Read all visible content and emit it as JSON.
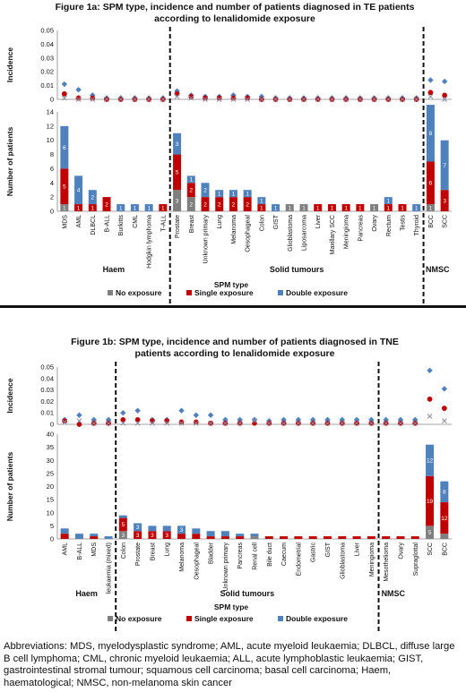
{
  "colors": {
    "none": "#7f7f7f",
    "single": "#c00000",
    "double": "#4f81bd",
    "diamond": "#4f81bd",
    "circle": "#c00000",
    "cross": "#8a8aa8"
  },
  "legend": [
    "No exposure",
    "Single exposure",
    "Double exposure"
  ],
  "chart_data": [
    {
      "type": "bar",
      "title": "Figure 1a: SPM type, incidence and number of patients diagnosed in TE patients according to lenalidomide exposure",
      "title_lines": [
        "Figure 1a: SPM type, incidence and number of patients diagnosed in TE patients",
        "according to lenalidomide exposure"
      ],
      "xlabel": "SPM type",
      "ylabel_top": "Incidence",
      "ylabel_bottom": "Number of patients",
      "top_ylim": [
        0,
        0.05
      ],
      "top_ticks": [
        "0",
        "0.01",
        "0.02",
        "0.03",
        "0.04",
        "0.05"
      ],
      "bottom_ylim": [
        0,
        14
      ],
      "bottom_ticks": [
        "0",
        "2",
        "4",
        "6",
        "8",
        "10",
        "12",
        "14"
      ],
      "groups": [
        {
          "name": "Haem",
          "start": 0,
          "end": 7
        },
        {
          "name": "Solid tumours",
          "start": 8,
          "end": 25
        },
        {
          "name": "NMSC",
          "start": 26,
          "end": 27
        }
      ],
      "dividers": [
        7.5,
        25.5
      ],
      "categories": [
        "MDS",
        "AML",
        "DLBCL",
        "B-ALL",
        "Burkitts",
        "CML",
        "Hodgkin lymphoma",
        "T-ALL",
        "Prostate",
        "Breast",
        "Unknown primary",
        "Lung",
        "Melanoma",
        "Oesophageal",
        "Colon",
        "GIST",
        "Glioblastoma",
        "Liposarcoma",
        "Liver",
        "Maxillary SCC",
        "Meningioma",
        "Pancreas",
        "Ovary",
        "Rectum",
        "Testis",
        "Thyroid",
        "BCC",
        "SCC"
      ],
      "series": [
        {
          "name": "No exposure",
          "values": [
            1,
            0,
            0,
            0,
            0,
            0,
            0,
            0,
            3,
            2,
            0,
            0,
            0,
            0,
            0,
            0,
            1,
            1,
            0,
            0,
            0,
            0,
            1,
            0,
            0,
            0,
            1,
            0
          ]
        },
        {
          "name": "Single exposure",
          "values": [
            5,
            1,
            1,
            2,
            0,
            0,
            0,
            1,
            5,
            2,
            2,
            2,
            2,
            2,
            1,
            0,
            0,
            0,
            1,
            1,
            1,
            1,
            0,
            1,
            1,
            0,
            6,
            3
          ]
        },
        {
          "name": "Double exposure",
          "values": [
            6,
            4,
            2,
            0,
            1,
            1,
            1,
            0,
            3,
            1,
            2,
            1,
            1,
            1,
            1,
            1,
            0,
            0,
            0,
            0,
            0,
            0,
            0,
            1,
            0,
            1,
            8,
            7
          ]
        }
      ],
      "incidence_diamond": [
        0.011,
        0.007,
        0.003,
        0.001,
        0.001,
        0.001,
        0.001,
        0.001,
        0.006,
        0.003,
        0.002,
        0.002,
        0.003,
        0.002,
        0.002,
        0.001,
        0.001,
        0.001,
        0.001,
        0.001,
        0.001,
        0.001,
        0.001,
        0.001,
        0.001,
        0.001,
        0.014,
        0.013
      ],
      "incidence_circle": [
        0.004,
        0.001,
        0.001,
        0.0,
        0.0,
        0.0,
        0.0,
        0.0,
        0.004,
        0.002,
        0.001,
        0.001,
        0.001,
        0.001,
        0.0,
        0.0,
        0.0,
        0.0,
        0.0,
        0.0,
        0.0,
        0.0,
        0.0,
        0.0,
        0.0,
        0.0,
        0.005,
        0.003
      ],
      "incidence_cross": [
        0.001,
        0.0,
        0.0,
        0.0,
        0.0,
        0.0,
        0.0,
        0.0,
        0.002,
        0.001,
        0.0,
        0.0,
        0.0,
        0.0,
        0.0,
        0.0,
        0.0,
        0.0,
        0.0,
        0.0,
        0.0,
        0.0,
        0.0,
        0.0,
        0.0,
        0.0,
        0.002,
        0.0
      ]
    },
    {
      "type": "bar",
      "title": "Figure 1b: SPM type, incidence and number of patients diagnosed in TNE patients according to lenalidomide exposure",
      "title_lines": [
        "Figure 1b: SPM type, incidence and number of patients diagnosed in TNE",
        "patients according to lenalidomide exposure"
      ],
      "xlabel": "SPM type",
      "ylabel_top": "Incidence",
      "ylabel_bottom": "Number of patients",
      "top_ylim": [
        0,
        0.05
      ],
      "top_ticks": [
        "0",
        "0.01",
        "0.02",
        "0.03",
        "0.04",
        "0.05"
      ],
      "bottom_ylim": [
        0,
        40
      ],
      "bottom_ticks": [
        "0",
        "5",
        "10",
        "15",
        "20",
        "25",
        "30",
        "35",
        "40"
      ],
      "groups": [
        {
          "name": "Haem",
          "start": 0,
          "end": 3
        },
        {
          "name": "Solid tumours",
          "start": 4,
          "end": 21
        },
        {
          "name": "NMSC",
          "start": 22,
          "end": 23
        }
      ],
      "dividers": [
        3.5,
        21.5
      ],
      "categories": [
        "AML",
        "B-ALL",
        "MDS",
        "leukaemia (mixed)",
        "Colon",
        "Prostate",
        "Breast",
        "Lung",
        "Melanoma",
        "Oesophageal",
        "Bladder",
        "Unknown primary",
        "Pancreas",
        "Renal cell",
        "Bile duct",
        "Caecum",
        "Endometrial",
        "Gastric",
        "GIST",
        "Glioblastoma",
        "Liver",
        "Meningioma",
        "Mesothelioma",
        "Ovary",
        "Supraglottal",
        "SCC",
        "BCC"
      ],
      "categories_note": "",
      "series": [
        {
          "name": "No exposure",
          "values": [
            0,
            0,
            0,
            0,
            3,
            0,
            0,
            0,
            0,
            0,
            0,
            0,
            0,
            1,
            0,
            0,
            0,
            0,
            0,
            0,
            0,
            0,
            0,
            0,
            0,
            5,
            2
          ]
        },
        {
          "name": "Single exposure",
          "values": [
            2,
            0,
            1,
            0,
            5,
            3,
            3,
            3,
            2,
            2,
            1,
            1,
            1,
            0,
            1,
            1,
            1,
            1,
            1,
            1,
            1,
            1,
            1,
            1,
            1,
            19,
            12
          ]
        },
        {
          "name": "Double exposure",
          "values": [
            2,
            2,
            1,
            1,
            1,
            3,
            2,
            2,
            3,
            2,
            2,
            2,
            1,
            1,
            0,
            0,
            0,
            0,
            0,
            0,
            0,
            0,
            0,
            0,
            0,
            12,
            8
          ]
        }
      ],
      "incidence_diamond": [
        0.004,
        0.008,
        0.004,
        0.004,
        0.01,
        0.012,
        0.004,
        0.004,
        0.012,
        0.008,
        0.008,
        0.004,
        0.004,
        0.004,
        0.003,
        0.004,
        0.004,
        0.004,
        0.004,
        0.004,
        0.004,
        0.004,
        0.004,
        0.004,
        0.004,
        0.047,
        0.031
      ],
      "incidence_circle": [
        0.003,
        0.0,
        0.001,
        0.001,
        0.004,
        0.004,
        0.003,
        0.003,
        0.002,
        0.002,
        0.001,
        0.001,
        0.001,
        0.001,
        0.001,
        0.001,
        0.001,
        0.001,
        0.001,
        0.001,
        0.001,
        0.001,
        0.001,
        0.001,
        0.001,
        0.022,
        0.014
      ],
      "incidence_cross": [
        0.002,
        0.003,
        0.001,
        0.001,
        0.001,
        0.001,
        0.001,
        0.001,
        0.001,
        0.001,
        0.001,
        0.001,
        0.001,
        0.003,
        0.001,
        0.001,
        0.001,
        0.001,
        0.001,
        0.001,
        0.001,
        0.001,
        0.001,
        0.001,
        0.001,
        0.007,
        0.003
      ]
    }
  ],
  "abbreviations": "Abbreviations: MDS, myelodysplastic syndrome; AML, acute myeloid leukaemia; DLBCL, diffuse large B cell lymphoma; CML, chronic myeloid leukaemia; ALL, acute lymphoblastic leukaemia; GIST, gastrointestinal stromal tumour; squamous cell carcinoma; basal cell carcinoma; Haem, haematological; NMSC, non-melanoma skin cancer"
}
